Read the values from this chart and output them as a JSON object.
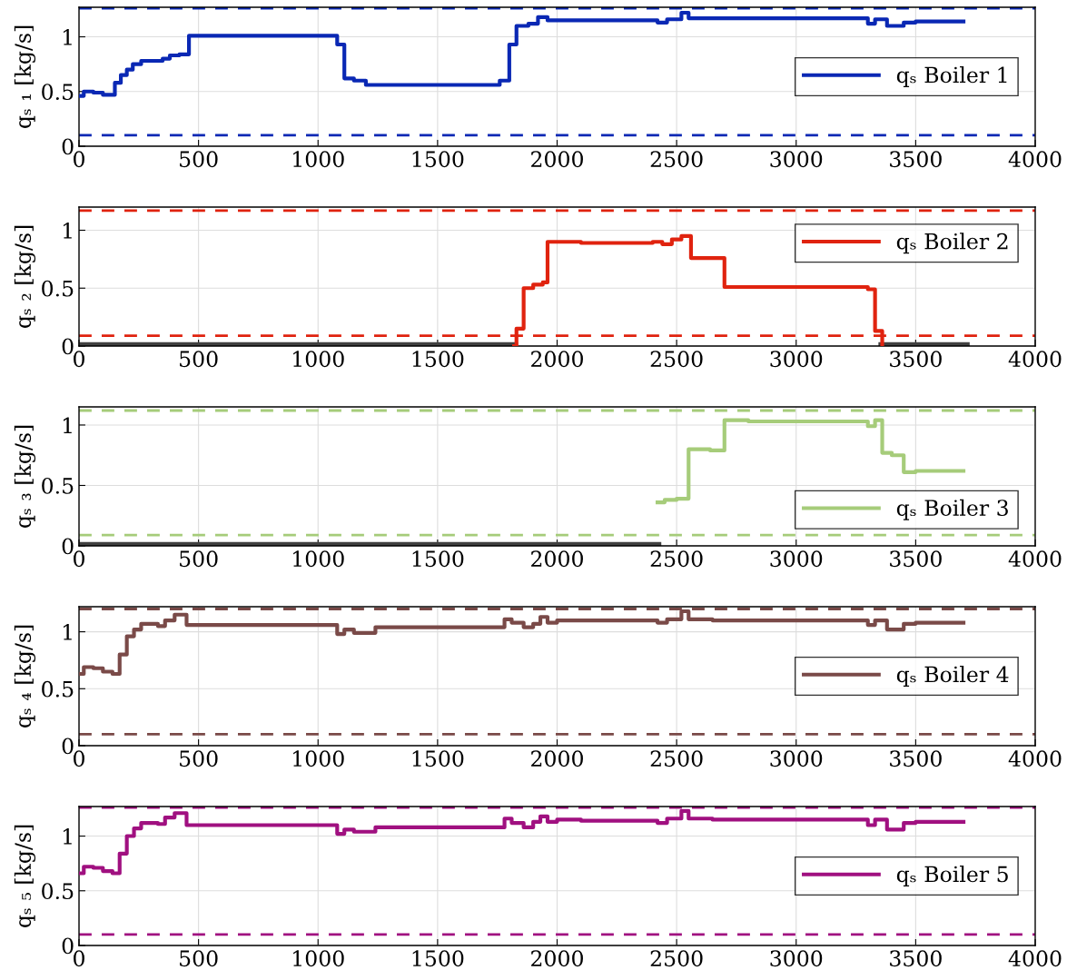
{
  "chart_data": [
    {
      "type": "step",
      "ylabel": "qₛ ₁ [kg/s]",
      "xlim": [
        0,
        4000
      ],
      "xticks": [
        0,
        500,
        1000,
        1500,
        2000,
        2500,
        3000,
        3500,
        4000
      ],
      "ylim": [
        0,
        1.27
      ],
      "yticks": [
        0,
        0.5,
        1
      ],
      "grid": true,
      "legend": "right",
      "ref_lines": [
        {
          "axis": "y",
          "value": 1.26,
          "color": "#0a28b4",
          "line_style": "dashed"
        },
        {
          "axis": "y",
          "value": 0.1,
          "color": "#0a28b4",
          "line_style": "dashed"
        }
      ],
      "series": [
        {
          "name": "qₛ Boiler 1",
          "color": "#0a28b4",
          "x": [
            0,
            20,
            60,
            100,
            150,
            175,
            200,
            225,
            260,
            330,
            350,
            380,
            420,
            460,
            1080,
            1110,
            1150,
            1200,
            1760,
            1800,
            1830,
            1880,
            1920,
            1960,
            2100,
            2420,
            2460,
            2520,
            2550,
            2650,
            3300,
            3330,
            3380,
            3450,
            3500,
            3700
          ],
          "values": [
            0.46,
            0.5,
            0.49,
            0.47,
            0.58,
            0.65,
            0.7,
            0.75,
            0.78,
            0.78,
            0.8,
            0.83,
            0.84,
            1.01,
            0.93,
            0.62,
            0.6,
            0.56,
            0.6,
            0.93,
            1.1,
            1.12,
            1.18,
            1.15,
            1.15,
            1.13,
            1.16,
            1.22,
            1.17,
            1.17,
            1.12,
            1.16,
            1.1,
            1.13,
            1.14,
            1.14
          ]
        }
      ]
    },
    {
      "type": "step",
      "ylabel": "qₛ ₂ [kg/s]",
      "xlim": [
        0,
        4000
      ],
      "xticks": [
        0,
        500,
        1000,
        1500,
        2000,
        2500,
        3000,
        3500,
        4000
      ],
      "ylim": [
        0,
        1.2
      ],
      "yticks": [
        0,
        0.5,
        1
      ],
      "grid": true,
      "legend": "top right",
      "ref_lines": [
        {
          "axis": "y",
          "value": 1.17,
          "color": "#e0230f",
          "line_style": "dashed"
        },
        {
          "axis": "y",
          "value": 0.09,
          "color": "#e0230f",
          "line_style": "dashed"
        }
      ],
      "series": [
        {
          "color": "#404040",
          "x": [
            0,
            1820,
            3360,
            3710
          ],
          "values": [
            0,
            null,
            0,
            0
          ]
        },
        {
          "name": "qₛ Boiler 2",
          "color": "#e0230f",
          "x": [
            1820,
            1830,
            1860,
            1900,
            1940,
            1960,
            2100,
            2400,
            2440,
            2480,
            2520,
            2560,
            2700,
            2800,
            3300,
            3330,
            3360
          ],
          "values": [
            0,
            0.15,
            0.5,
            0.53,
            0.55,
            0.9,
            0.89,
            0.9,
            0.88,
            0.92,
            0.95,
            0.76,
            0.51,
            0.51,
            0.49,
            0.13,
            0
          ]
        }
      ]
    },
    {
      "type": "step",
      "ylabel": "qₛ ₃ [kg/s]",
      "xlim": [
        0,
        4000
      ],
      "xticks": [
        0,
        500,
        1000,
        1500,
        2000,
        2500,
        3000,
        3500,
        4000
      ],
      "ylim": [
        0,
        1.15
      ],
      "yticks": [
        0,
        0.5,
        1
      ],
      "grid": true,
      "legend": "bottom right",
      "ref_lines": [
        {
          "axis": "y",
          "value": 1.12,
          "color": "#a6cc7a",
          "line_style": "dashed"
        },
        {
          "axis": "y",
          "value": 0.09,
          "color": "#a6cc7a",
          "line_style": "dashed"
        }
      ],
      "series": [
        {
          "color": "#404040",
          "x": [
            0,
            2420
          ],
          "values": [
            0,
            0
          ]
        },
        {
          "name": "qₛ Boiler 3",
          "color": "#a6cc7a",
          "x": [
            2420,
            2450,
            2500,
            2550,
            2600,
            2640,
            2700,
            2800,
            3300,
            3330,
            3360,
            3400,
            3450,
            3500,
            3700
          ],
          "values": [
            0.36,
            0.38,
            0.39,
            0.8,
            0.8,
            0.79,
            1.04,
            1.03,
            0.99,
            1.04,
            0.77,
            0.75,
            0.61,
            0.62,
            0.62
          ]
        }
      ]
    },
    {
      "type": "step",
      "ylabel": "qₛ ₄ [kg/s]",
      "xlim": [
        0,
        4000
      ],
      "xticks": [
        0,
        500,
        1000,
        1500,
        2000,
        2500,
        3000,
        3500,
        4000
      ],
      "ylim": [
        0,
        1.22
      ],
      "yticks": [
        0,
        0.5,
        1
      ],
      "grid": true,
      "legend": "right",
      "ref_lines": [
        {
          "axis": "y",
          "value": 1.2,
          "color": "#7a4a48",
          "line_style": "dashed"
        },
        {
          "axis": "y",
          "value": 0.1,
          "color": "#7a4a48",
          "line_style": "dashed"
        }
      ],
      "series": [
        {
          "name": "qₛ Boiler 4",
          "color": "#7a4a48",
          "x": [
            0,
            20,
            60,
            100,
            140,
            170,
            200,
            230,
            260,
            330,
            360,
            400,
            450,
            1080,
            1110,
            1150,
            1240,
            1780,
            1810,
            1860,
            1900,
            1930,
            1960,
            2000,
            2420,
            2460,
            2520,
            2550,
            2650,
            3300,
            3330,
            3380,
            3450,
            3500,
            3700
          ],
          "values": [
            0.63,
            0.69,
            0.68,
            0.65,
            0.63,
            0.8,
            0.96,
            1.02,
            1.07,
            1.05,
            1.1,
            1.15,
            1.06,
            0.98,
            1.02,
            0.99,
            1.04,
            1.11,
            1.08,
            1.04,
            1.07,
            1.13,
            1.08,
            1.1,
            1.08,
            1.11,
            1.18,
            1.11,
            1.1,
            1.06,
            1.1,
            1.02,
            1.07,
            1.08,
            1.08
          ]
        }
      ]
    },
    {
      "type": "step",
      "ylabel": "qₛ ₅ [kg/s]",
      "xlim": [
        0,
        4000
      ],
      "xticks": [
        0,
        500,
        1000,
        1500,
        2000,
        2500,
        3000,
        3500,
        4000
      ],
      "ylim": [
        0,
        1.27
      ],
      "yticks": [
        0,
        0.5,
        1
      ],
      "grid": true,
      "legend": "right",
      "ref_lines": [
        {
          "axis": "y",
          "value": 1.26,
          "color": "#a01080",
          "line_style": "dashed"
        },
        {
          "axis": "y",
          "value": 0.1,
          "color": "#a01080",
          "line_style": "dashed"
        }
      ],
      "series": [
        {
          "name": "qₛ Boiler 5",
          "color": "#a01080",
          "x": [
            0,
            20,
            60,
            100,
            140,
            170,
            200,
            230,
            260,
            330,
            360,
            400,
            450,
            1080,
            1110,
            1150,
            1240,
            1780,
            1810,
            1860,
            1900,
            1930,
            1960,
            2000,
            2100,
            2420,
            2460,
            2520,
            2550,
            2650,
            3300,
            3330,
            3380,
            3450,
            3500,
            3700
          ],
          "values": [
            0.66,
            0.72,
            0.71,
            0.68,
            0.66,
            0.84,
            1.0,
            1.07,
            1.12,
            1.11,
            1.17,
            1.21,
            1.1,
            1.02,
            1.06,
            1.04,
            1.08,
            1.16,
            1.12,
            1.08,
            1.13,
            1.18,
            1.13,
            1.15,
            1.14,
            1.12,
            1.16,
            1.23,
            1.16,
            1.15,
            1.1,
            1.15,
            1.06,
            1.12,
            1.13,
            1.13
          ]
        }
      ]
    }
  ]
}
